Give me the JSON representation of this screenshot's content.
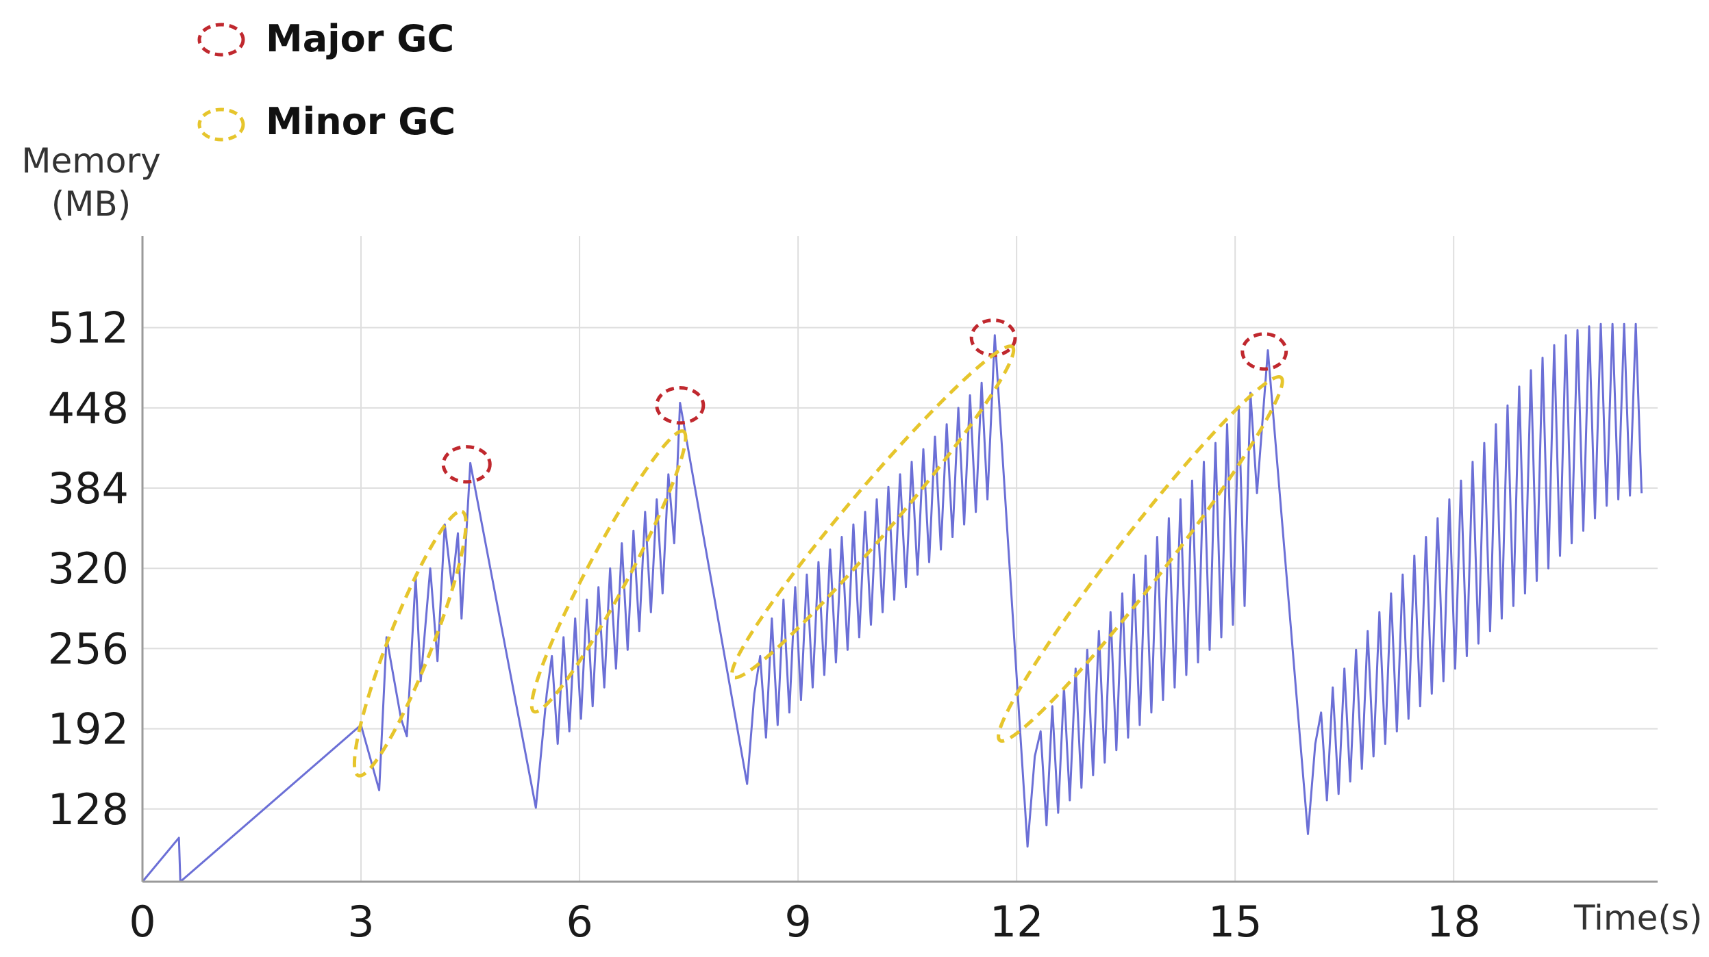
{
  "legend": {
    "major": {
      "label": "Major GC",
      "color": "#c0282e"
    },
    "minor": {
      "label": "Minor GC",
      "color": "#e6c52c"
    }
  },
  "chart_data": {
    "type": "line",
    "title": "",
    "ylabel_line1": "Memory",
    "ylabel_line2": "(MB)",
    "xlabel": "Time(s)",
    "xlim": [
      0,
      20.8
    ],
    "ylim": [
      70,
      585
    ],
    "x_ticks": [
      "0",
      "3",
      "6",
      "9",
      "12",
      "15",
      "18"
    ],
    "y_ticks": [
      "128",
      "192",
      "256",
      "320",
      "384",
      "448",
      "512"
    ],
    "grid": true,
    "line_color": "#6b6fd6",
    "series": [
      {
        "name": "",
        "points": [
          [
            0,
            70
          ],
          [
            0.5,
            105
          ],
          [
            0.52,
            70
          ],
          [
            2.9,
            190
          ],
          [
            3.0,
            195
          ],
          [
            3.25,
            143
          ],
          [
            3.35,
            265
          ],
          [
            3.55,
            200
          ],
          [
            3.63,
            186
          ],
          [
            3.75,
            313
          ],
          [
            3.82,
            230
          ],
          [
            3.95,
            320
          ],
          [
            4.05,
            246
          ],
          [
            4.15,
            355
          ],
          [
            4.25,
            305
          ],
          [
            4.33,
            348
          ],
          [
            4.38,
            280
          ],
          [
            4.5,
            404
          ],
          [
            5.4,
            129
          ],
          [
            5.55,
            220
          ],
          [
            5.62,
            250
          ],
          [
            5.7,
            180
          ],
          [
            5.78,
            265
          ],
          [
            5.86,
            190
          ],
          [
            5.94,
            280
          ],
          [
            6.02,
            200
          ],
          [
            6.1,
            295
          ],
          [
            6.18,
            210
          ],
          [
            6.26,
            305
          ],
          [
            6.34,
            225
          ],
          [
            6.42,
            320
          ],
          [
            6.5,
            240
          ],
          [
            6.58,
            340
          ],
          [
            6.66,
            255
          ],
          [
            6.74,
            350
          ],
          [
            6.82,
            270
          ],
          [
            6.9,
            365
          ],
          [
            6.98,
            285
          ],
          [
            7.06,
            375
          ],
          [
            7.14,
            300
          ],
          [
            7.22,
            395
          ],
          [
            7.3,
            340
          ],
          [
            7.38,
            452
          ],
          [
            8.3,
            148
          ],
          [
            8.4,
            220
          ],
          [
            8.48,
            250
          ],
          [
            8.56,
            185
          ],
          [
            8.64,
            280
          ],
          [
            8.72,
            195
          ],
          [
            8.8,
            295
          ],
          [
            8.88,
            205
          ],
          [
            8.96,
            305
          ],
          [
            9.04,
            215
          ],
          [
            9.12,
            315
          ],
          [
            9.2,
            225
          ],
          [
            9.28,
            325
          ],
          [
            9.36,
            235
          ],
          [
            9.44,
            335
          ],
          [
            9.52,
            245
          ],
          [
            9.6,
            345
          ],
          [
            9.68,
            255
          ],
          [
            9.76,
            355
          ],
          [
            9.84,
            265
          ],
          [
            9.92,
            365
          ],
          [
            10.0,
            275
          ],
          [
            10.08,
            375
          ],
          [
            10.16,
            285
          ],
          [
            10.24,
            385
          ],
          [
            10.32,
            295
          ],
          [
            10.4,
            395
          ],
          [
            10.48,
            305
          ],
          [
            10.56,
            405
          ],
          [
            10.64,
            315
          ],
          [
            10.72,
            415
          ],
          [
            10.8,
            325
          ],
          [
            10.88,
            425
          ],
          [
            10.96,
            335
          ],
          [
            11.04,
            435
          ],
          [
            11.12,
            345
          ],
          [
            11.2,
            448
          ],
          [
            11.28,
            355
          ],
          [
            11.36,
            458
          ],
          [
            11.44,
            365
          ],
          [
            11.52,
            468
          ],
          [
            11.6,
            375
          ],
          [
            11.7,
            506
          ],
          [
            12.15,
            98
          ],
          [
            12.25,
            170
          ],
          [
            12.33,
            190
          ],
          [
            12.41,
            115
          ],
          [
            12.49,
            210
          ],
          [
            12.57,
            125
          ],
          [
            12.65,
            225
          ],
          [
            12.73,
            135
          ],
          [
            12.81,
            240
          ],
          [
            12.89,
            145
          ],
          [
            12.97,
            255
          ],
          [
            13.05,
            155
          ],
          [
            13.13,
            270
          ],
          [
            13.21,
            165
          ],
          [
            13.29,
            285
          ],
          [
            13.37,
            175
          ],
          [
            13.45,
            300
          ],
          [
            13.53,
            185
          ],
          [
            13.61,
            315
          ],
          [
            13.69,
            195
          ],
          [
            13.77,
            330
          ],
          [
            13.85,
            205
          ],
          [
            13.93,
            345
          ],
          [
            14.01,
            215
          ],
          [
            14.09,
            360
          ],
          [
            14.17,
            225
          ],
          [
            14.25,
            375
          ],
          [
            14.33,
            235
          ],
          [
            14.41,
            390
          ],
          [
            14.49,
            245
          ],
          [
            14.57,
            405
          ],
          [
            14.65,
            255
          ],
          [
            14.73,
            420
          ],
          [
            14.81,
            265
          ],
          [
            14.89,
            435
          ],
          [
            14.97,
            275
          ],
          [
            15.05,
            448
          ],
          [
            15.13,
            290
          ],
          [
            15.21,
            460
          ],
          [
            15.3,
            380
          ],
          [
            15.45,
            494
          ],
          [
            16.0,
            108
          ],
          [
            16.1,
            180
          ],
          [
            16.18,
            205
          ],
          [
            16.26,
            135
          ],
          [
            16.34,
            225
          ],
          [
            16.42,
            140
          ],
          [
            16.5,
            240
          ],
          [
            16.58,
            150
          ],
          [
            16.66,
            255
          ],
          [
            16.74,
            160
          ],
          [
            16.82,
            270
          ],
          [
            16.9,
            170
          ],
          [
            16.98,
            285
          ],
          [
            17.06,
            180
          ],
          [
            17.14,
            300
          ],
          [
            17.22,
            190
          ],
          [
            17.3,
            315
          ],
          [
            17.38,
            200
          ],
          [
            17.46,
            330
          ],
          [
            17.54,
            210
          ],
          [
            17.62,
            345
          ],
          [
            17.7,
            220
          ],
          [
            17.78,
            360
          ],
          [
            17.86,
            230
          ],
          [
            17.94,
            375
          ],
          [
            18.02,
            240
          ],
          [
            18.1,
            390
          ],
          [
            18.18,
            250
          ],
          [
            18.26,
            405
          ],
          [
            18.34,
            260
          ],
          [
            18.42,
            420
          ],
          [
            18.5,
            270
          ],
          [
            18.58,
            435
          ],
          [
            18.66,
            280
          ],
          [
            18.74,
            450
          ],
          [
            18.82,
            290
          ],
          [
            18.9,
            465
          ],
          [
            18.98,
            300
          ],
          [
            19.06,
            478
          ],
          [
            19.14,
            310
          ],
          [
            19.22,
            488
          ],
          [
            19.3,
            320
          ],
          [
            19.38,
            498
          ],
          [
            19.46,
            330
          ],
          [
            19.54,
            506
          ],
          [
            19.62,
            340
          ],
          [
            19.7,
            510
          ],
          [
            19.78,
            350
          ],
          [
            19.86,
            513
          ],
          [
            19.94,
            360
          ],
          [
            20.02,
            515
          ],
          [
            20.1,
            370
          ],
          [
            20.18,
            515
          ],
          [
            20.26,
            375
          ],
          [
            20.34,
            515
          ],
          [
            20.42,
            378
          ],
          [
            20.5,
            515
          ],
          [
            20.58,
            380
          ]
        ]
      }
    ],
    "annotations": [
      {
        "kind": "major",
        "x": 4.45,
        "y": 403,
        "rx": 0.32,
        "ry": 14
      },
      {
        "kind": "major",
        "x": 7.38,
        "y": 450,
        "rx": 0.32,
        "ry": 14
      },
      {
        "kind": "major",
        "x": 11.68,
        "y": 504,
        "rx": 0.3,
        "ry": 14
      },
      {
        "kind": "major",
        "x": 15.4,
        "y": 493,
        "rx": 0.3,
        "ry": 14
      },
      {
        "kind": "minor",
        "from": [
          3.1,
          175
        ],
        "to": [
          4.25,
          345
        ],
        "halfwidth": 0.3
      },
      {
        "kind": "minor",
        "from": [
          5.55,
          225
        ],
        "to": [
          7.25,
          410
        ],
        "halfwidth": 0.28
      },
      {
        "kind": "minor",
        "from": [
          8.35,
          250
        ],
        "to": [
          11.7,
          480
        ],
        "halfwidth": 0.32
      },
      {
        "kind": "minor",
        "from": [
          12.0,
          200
        ],
        "to": [
          15.4,
          455
        ],
        "halfwidth": 0.34
      }
    ]
  }
}
